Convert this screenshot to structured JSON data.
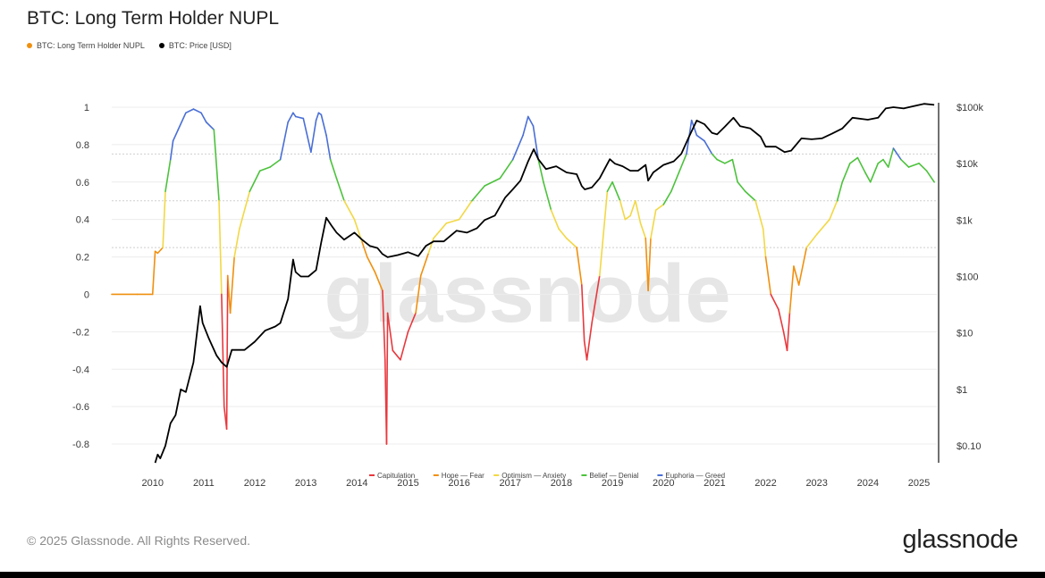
{
  "header": {
    "title": "BTC: Long Term Holder NUPL"
  },
  "legend": [
    {
      "label": "BTC: Long Term Holder NUPL",
      "color": "#f0900f"
    },
    {
      "label": "BTC: Price [USD]",
      "color": "#000000"
    }
  ],
  "footer": {
    "copyright": "© 2025 Glassnode. All Rights Reserved.",
    "logo": "glassnode"
  },
  "watermark": "glassnode",
  "chart_data": {
    "type": "line",
    "title": "BTC: Long Term Holder NUPL",
    "x_ticks": [
      "2010",
      "2011",
      "2012",
      "2013",
      "2014",
      "2015",
      "2016",
      "2017",
      "2018",
      "2019",
      "2020",
      "2021",
      "2022",
      "2023",
      "2024",
      "2025"
    ],
    "xlim": [
      2009.7,
      2025.85
    ],
    "y_left": {
      "ticks": [
        "1",
        "0.8",
        "0.6",
        "0.4",
        "0.2",
        "0",
        "-0.2",
        "-0.4",
        "-0.6",
        "-0.8"
      ],
      "ylim": [
        -0.9,
        1.0
      ]
    },
    "y_right": {
      "ticks": [
        "$100k",
        "$10k",
        "$1k",
        "$100",
        "$10",
        "$1",
        "$0.10"
      ],
      "scale": "log",
      "ylim_log10": [
        -1.3,
        5.0
      ]
    },
    "zones": [
      {
        "label": "Capitulation",
        "color": "#e8383d",
        "range": [
          -1.0,
          0.0
        ]
      },
      {
        "label": "Hope — Fear",
        "color": "#f0900f",
        "range": [
          0.0,
          0.25
        ]
      },
      {
        "label": "Optimism — Anxiety",
        "color": "#f2d845",
        "range": [
          0.25,
          0.5
        ]
      },
      {
        "label": "Belief — Denial",
        "color": "#4cc23c",
        "range": [
          0.5,
          0.75
        ]
      },
      {
        "label": "Euphoria — Greed",
        "color": "#4a6fd6",
        "range": [
          0.75,
          1.0
        ]
      }
    ],
    "series": [
      {
        "name": "BTC: Long Term Holder NUPL",
        "axis": "left",
        "x": [
          2009.7,
          2010.2,
          2010.5,
          2010.55,
          2010.6,
          2010.7,
          2010.75,
          2010.85,
          2010.9,
          2011.0,
          2011.15,
          2011.3,
          2011.45,
          2011.55,
          2011.7,
          2011.8,
          2011.85,
          2011.9,
          2011.95,
          2011.97,
          2012.02,
          2012.1,
          2012.2,
          2012.4,
          2012.6,
          2012.8,
          2013.0,
          2013.15,
          2013.25,
          2013.3,
          2013.45,
          2013.6,
          2013.7,
          2013.75,
          2013.8,
          2013.9,
          2013.98,
          2014.1,
          2014.25,
          2014.45,
          2014.6,
          2014.7,
          2014.85,
          2015.0,
          2015.05,
          2015.08,
          2015.1,
          2015.2,
          2015.35,
          2015.5,
          2015.65,
          2015.75,
          2015.9,
          2016.0,
          2016.25,
          2016.5,
          2016.75,
          2017.0,
          2017.3,
          2017.55,
          2017.75,
          2017.85,
          2017.95,
          2018.05,
          2018.15,
          2018.3,
          2018.45,
          2018.6,
          2018.8,
          2018.9,
          2018.95,
          2019.0,
          2019.1,
          2019.25,
          2019.4,
          2019.5,
          2019.65,
          2019.75,
          2019.85,
          2019.95,
          2020.05,
          2020.15,
          2020.2,
          2020.25,
          2020.35,
          2020.5,
          2020.65,
          2020.8,
          2020.95,
          2021.05,
          2021.15,
          2021.3,
          2021.45,
          2021.55,
          2021.7,
          2021.85,
          2021.95,
          2022.1,
          2022.3,
          2022.45,
          2022.5,
          2022.6,
          2022.75,
          2022.85,
          2022.92,
          2022.97,
          2023.05,
          2023.15,
          2023.3,
          2023.5,
          2023.75,
          2023.9,
          2024.0,
          2024.15,
          2024.3,
          2024.45,
          2024.55,
          2024.7,
          2024.8,
          2024.9,
          2025.0,
          2025.15,
          2025.3,
          2025.5,
          2025.65,
          2025.8
        ],
        "values": [
          0.0,
          0.0,
          0.0,
          0.23,
          0.22,
          0.25,
          0.55,
          0.72,
          0.82,
          0.88,
          0.97,
          0.99,
          0.97,
          0.92,
          0.88,
          0.5,
          0.0,
          -0.6,
          -0.72,
          0.1,
          -0.1,
          0.2,
          0.35,
          0.55,
          0.66,
          0.68,
          0.72,
          0.92,
          0.97,
          0.95,
          0.94,
          0.76,
          0.93,
          0.97,
          0.96,
          0.85,
          0.72,
          0.62,
          0.5,
          0.4,
          0.28,
          0.2,
          0.12,
          0.02,
          -0.35,
          -0.8,
          -0.1,
          -0.3,
          -0.35,
          -0.2,
          -0.1,
          0.1,
          0.22,
          0.3,
          0.38,
          0.4,
          0.5,
          0.58,
          0.62,
          0.72,
          0.85,
          0.95,
          0.9,
          0.72,
          0.6,
          0.45,
          0.35,
          0.3,
          0.25,
          0.05,
          -0.25,
          -0.35,
          -0.15,
          0.1,
          0.55,
          0.6,
          0.5,
          0.4,
          0.42,
          0.5,
          0.38,
          0.3,
          0.02,
          0.3,
          0.45,
          0.48,
          0.55,
          0.65,
          0.75,
          0.93,
          0.85,
          0.82,
          0.75,
          0.72,
          0.7,
          0.72,
          0.6,
          0.55,
          0.5,
          0.35,
          0.2,
          0.0,
          -0.08,
          -0.2,
          -0.3,
          -0.1,
          0.15,
          0.05,
          0.25,
          0.32,
          0.4,
          0.5,
          0.6,
          0.7,
          0.73,
          0.65,
          0.6,
          0.7,
          0.72,
          0.68,
          0.78,
          0.72,
          0.68,
          0.7,
          0.66,
          0.6
        ]
      },
      {
        "name": "BTC: Price [USD]",
        "axis": "right",
        "scale": "log",
        "x": [
          2010.55,
          2010.6,
          2010.65,
          2010.75,
          2010.85,
          2010.95,
          2011.05,
          2011.15,
          2011.3,
          2011.43,
          2011.48,
          2011.6,
          2011.75,
          2011.85,
          2011.95,
          2012.05,
          2012.3,
          2012.5,
          2012.7,
          2012.9,
          2013.0,
          2013.15,
          2013.25,
          2013.3,
          2013.4,
          2013.55,
          2013.7,
          2013.8,
          2013.9,
          2014.0,
          2014.1,
          2014.25,
          2014.45,
          2014.6,
          2014.75,
          2014.9,
          2015.0,
          2015.1,
          2015.3,
          2015.5,
          2015.7,
          2015.85,
          2016.0,
          2016.2,
          2016.45,
          2016.65,
          2016.85,
          2017.0,
          2017.2,
          2017.4,
          2017.55,
          2017.7,
          2017.85,
          2017.96,
          2018.05,
          2018.2,
          2018.4,
          2018.6,
          2018.8,
          2018.9,
          2018.96,
          2019.1,
          2019.25,
          2019.45,
          2019.55,
          2019.7,
          2019.85,
          2020.0,
          2020.15,
          2020.2,
          2020.3,
          2020.5,
          2020.7,
          2020.85,
          2021.0,
          2021.15,
          2021.3,
          2021.45,
          2021.55,
          2021.7,
          2021.87,
          2022.0,
          2022.2,
          2022.4,
          2022.5,
          2022.7,
          2022.87,
          2023.0,
          2023.2,
          2023.4,
          2023.6,
          2023.8,
          2024.0,
          2024.2,
          2024.5,
          2024.7,
          2024.85,
          2025.0,
          2025.2,
          2025.4,
          2025.6,
          2025.8
        ],
        "values": [
          0.05,
          0.07,
          0.06,
          0.1,
          0.25,
          0.35,
          1,
          0.9,
          3,
          30,
          15,
          8,
          4,
          3,
          2.5,
          5,
          5,
          7,
          11,
          13,
          15,
          40,
          200,
          120,
          100,
          100,
          130,
          400,
          1100,
          800,
          600,
          450,
          600,
          450,
          350,
          320,
          250,
          220,
          240,
          270,
          230,
          350,
          420,
          420,
          650,
          600,
          720,
          1000,
          1200,
          2500,
          3500,
          5000,
          11000,
          18000,
          12000,
          8000,
          9000,
          7000,
          6500,
          4000,
          3500,
          3800,
          5500,
          12000,
          10000,
          9000,
          7500,
          7500,
          9500,
          5000,
          7000,
          9500,
          11000,
          15000,
          30000,
          58000,
          50000,
          35000,
          33000,
          45000,
          65000,
          46000,
          42000,
          30000,
          20000,
          20000,
          16000,
          17000,
          28000,
          27000,
          28000,
          34000,
          42000,
          65000,
          60000,
          65000,
          95000,
          100000,
          95000,
          105000,
          115000,
          110000
        ]
      }
    ]
  }
}
